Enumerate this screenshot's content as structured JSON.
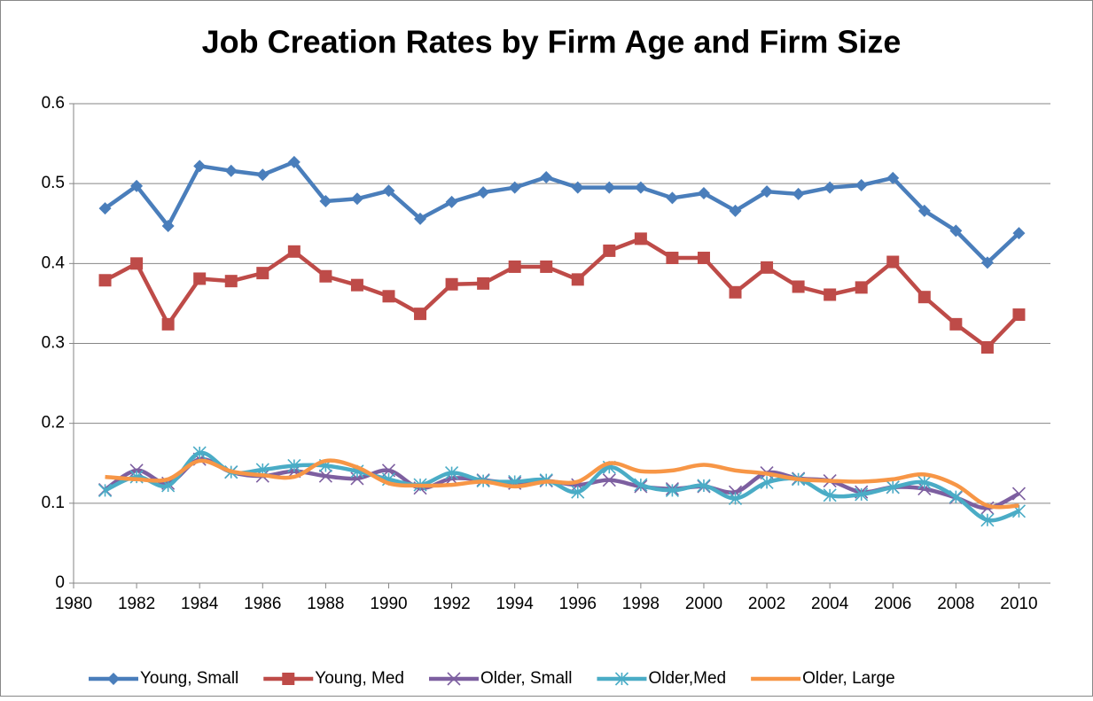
{
  "chart_data": {
    "type": "line",
    "title": "Job Creation Rates by Firm Age and Firm Size",
    "x": [
      1981,
      1982,
      1983,
      1984,
      1985,
      1986,
      1987,
      1988,
      1989,
      1990,
      1991,
      1992,
      1993,
      1994,
      1995,
      1996,
      1997,
      1998,
      1999,
      2000,
      2001,
      2002,
      2003,
      2004,
      2005,
      2006,
      2007,
      2008,
      2009,
      2010
    ],
    "series": [
      {
        "name": "Young, Small",
        "color": "#4a7ebb",
        "marker": "diamond",
        "smooth": false,
        "values": [
          0.469,
          0.497,
          0.447,
          0.522,
          0.516,
          0.511,
          0.527,
          0.478,
          0.481,
          0.491,
          0.456,
          0.477,
          0.489,
          0.495,
          0.508,
          0.495,
          0.495,
          0.495,
          0.482,
          0.488,
          0.466,
          0.49,
          0.487,
          0.495,
          0.498,
          0.507,
          0.466,
          0.441,
          0.401,
          0.438
        ]
      },
      {
        "name": "Young, Med",
        "color": "#be4b48",
        "marker": "square",
        "smooth": false,
        "values": [
          0.379,
          0.4,
          0.324,
          0.381,
          0.378,
          0.388,
          0.415,
          0.384,
          0.373,
          0.359,
          0.337,
          0.374,
          0.375,
          0.396,
          0.396,
          0.38,
          0.416,
          0.431,
          0.407,
          0.407,
          0.364,
          0.395,
          0.371,
          0.361,
          0.37,
          0.402,
          0.358,
          0.324,
          0.295,
          0.336
        ]
      },
      {
        "name": "Older, Small",
        "color": "#7d5fa0",
        "marker": "x",
        "smooth": true,
        "values": [
          0.117,
          0.141,
          0.125,
          0.155,
          0.139,
          0.134,
          0.14,
          0.134,
          0.131,
          0.141,
          0.119,
          0.131,
          0.129,
          0.125,
          0.128,
          0.123,
          0.129,
          0.121,
          0.118,
          0.121,
          0.114,
          0.138,
          0.131,
          0.128,
          0.114,
          0.12,
          0.118,
          0.107,
          0.094,
          0.112
        ]
      },
      {
        "name": "Older,Med",
        "color": "#4aacc6",
        "marker": "star",
        "smooth": true,
        "values": [
          0.116,
          0.133,
          0.122,
          0.163,
          0.139,
          0.142,
          0.147,
          0.147,
          0.14,
          0.13,
          0.123,
          0.138,
          0.128,
          0.127,
          0.129,
          0.114,
          0.145,
          0.123,
          0.116,
          0.122,
          0.106,
          0.126,
          0.13,
          0.11,
          0.111,
          0.12,
          0.126,
          0.108,
          0.079,
          0.09
        ]
      },
      {
        "name": "Older, Large",
        "color": "#f79646",
        "marker": "none",
        "smooth": true,
        "values": [
          0.133,
          0.13,
          0.13,
          0.153,
          0.14,
          0.135,
          0.133,
          0.153,
          0.145,
          0.125,
          0.122,
          0.123,
          0.127,
          0.121,
          0.127,
          0.127,
          0.15,
          0.14,
          0.141,
          0.148,
          0.141,
          0.137,
          0.13,
          0.128,
          0.127,
          0.13,
          0.136,
          0.123,
          0.097,
          0.097
        ]
      }
    ],
    "xlim": [
      1980,
      2011
    ],
    "xticks": [
      1980,
      1982,
      1984,
      1986,
      1988,
      1990,
      1992,
      1994,
      1996,
      1998,
      2000,
      2002,
      2004,
      2006,
      2008,
      2010
    ],
    "ylim": [
      0,
      0.6
    ],
    "yticks": [
      0,
      0.1,
      0.2,
      0.3,
      0.4,
      0.5,
      0.6
    ],
    "grid": true,
    "legend": "bottom"
  }
}
